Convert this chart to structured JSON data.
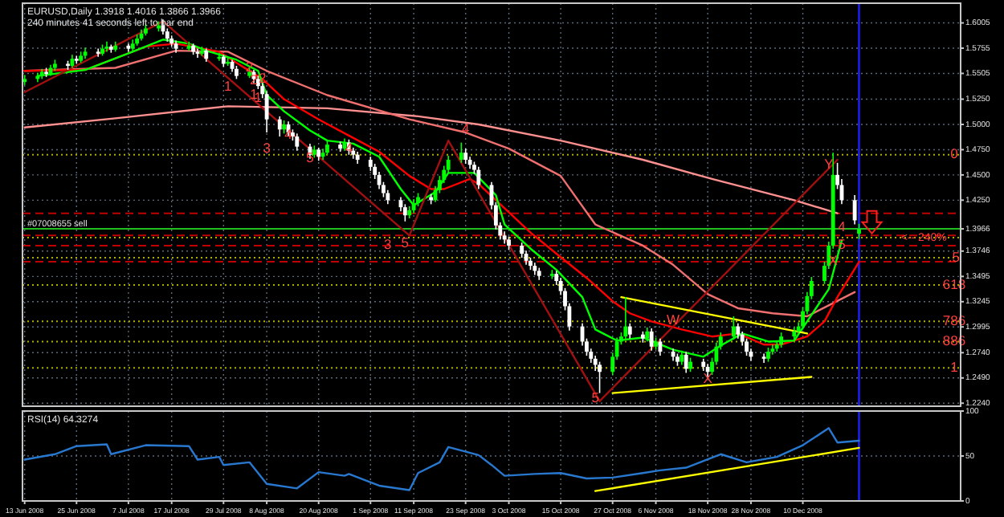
{
  "chart_data": [
    {
      "type": "candlestick",
      "title": "EURUSD,Daily  1.3918 1.4016 1.3866 1.3966",
      "subtitle": "240 minutes 41 seconds left to bar end",
      "colors": [
        "#00ff00",
        "#00ff00",
        "#00ff00",
        "#ffffff",
        "#00ff00",
        "#00ff00",
        "#ffffff",
        "#00ff00",
        "#ffffff",
        "#00ff00",
        "#00ff00",
        "#ffffff",
        "#00ff00",
        "#00ff00",
        "#ffffff",
        "#00ff00",
        "#ffffff",
        "#00ff00",
        "#00ff00",
        "#00ff00",
        "#00ff00",
        "#00ff00",
        "#ffffff",
        "#ffffff",
        "#ffffff",
        "#ffffff",
        "#00ff00",
        "#ffffff",
        "#ffffff",
        "#00ff00",
        "#ffffff",
        "#00ff00",
        "#ffffff",
        "#00ff00",
        "#ffffff",
        "#ffffff",
        "#00ff00",
        "#ffffff",
        "#ffffff",
        "#ffffff",
        "#ffffff",
        "#ffffff",
        "#00ff00",
        "#ffffff",
        "#ffffff",
        "#ffffff",
        "#ffffff",
        "#00ff00",
        "#ffffff",
        "#00ff00",
        "#00ff00",
        "#ffffff",
        "#00ff00",
        "#ffffff",
        "#ffffff",
        "#ffffff",
        "#ffffff",
        "#ffffff",
        "#ffffff",
        "#ffffff",
        "#ffffff",
        "#ffffff",
        "#ffffff",
        "#00ff00",
        "#00ff00",
        "#00ff00",
        "#ffffff",
        "#00ff00",
        "#00ff00",
        "#00ff00",
        "#00ff00",
        "#00ff00",
        "#ffffff",
        "#ffffff",
        "#ffffff",
        "#ffffff",
        "#ffffff",
        "#ffffff",
        "#ffffff",
        "#ffffff",
        "#ffffff",
        "#ffffff",
        "#ffffff",
        "#ffffff",
        "#ffffff",
        "#ffffff",
        "#00ff00",
        "#ffffff",
        "#ffffff",
        "#ffffff",
        "#ffffff",
        "#ffffff",
        "#ffffff",
        "#ffffff",
        "#ffffff",
        "#ffffff",
        "#00ff00",
        "#00ff00",
        "#00ff00",
        "#00ff00",
        "#ffffff",
        "#ffffff",
        "#00ff00",
        "#ffffff",
        "#00ff00",
        "#ffffff",
        "#ffffff",
        "#ffffff",
        "#00ff00",
        "#ffffff",
        "#00ff00",
        "#ffffff",
        "#ffffff",
        "#00ff00",
        "#00ff00",
        "#00ff00",
        "#00ff00",
        "#ffffff",
        "#ffffff",
        "#ffffff",
        "#ffffff",
        "#ffffff",
        "#00ff00",
        "#00ff00",
        "#00ff00",
        "#00ff00",
        "#00ff00",
        "#00ff00",
        "#00ff00",
        "#00ff00",
        "#00ff00",
        "#00ff00",
        "#00ff00",
        "#00ff00",
        "#ffffff",
        "#ffffff",
        "#ffffff",
        "#00ff00"
      ],
      "tick_labels": "y",
      "grid": true,
      "xlim": [
        "2008-06-13",
        "2009-01-15"
      ],
      "ylim": [
        1.221,
        1.62
      ],
      "xticks": [
        {
          "value": "2008-06-13",
          "label": null
        },
        {
          "value": "2008-06-25",
          "label": null
        },
        {
          "value": "2008-07-07",
          "label": null
        },
        {
          "value": "2008-07-17",
          "label": null
        },
        {
          "value": "2008-07-29",
          "label": null
        },
        {
          "value": "2008-08-08",
          "label": null
        },
        {
          "value": "2008-08-20",
          "label": null
        },
        {
          "value": "2008-09-01",
          "label": null
        },
        {
          "value": "2008-09-11",
          "label": null
        },
        {
          "value": "2008-09-23",
          "label": null
        },
        {
          "value": "2008-10-03",
          "label": null
        },
        {
          "value": "2008-10-15",
          "label": null
        },
        {
          "value": "2008-10-27",
          "label": null
        },
        {
          "value": "2008-11-06",
          "label": null
        },
        {
          "value": "2008-11-18",
          "label": null
        },
        {
          "value": "2008-11-28",
          "label": null
        },
        {
          "value": "2008-12-10",
          "label": null
        }
      ],
      "yticks": [
        1.6005,
        1.5755,
        1.5505,
        {
          "value": 1.525,
          "label": "1.5250"
        },
        {
          "value": 1.5,
          "label": "1.5000"
        },
        {
          "value": 1.475,
          "label": "1.4750"
        },
        {
          "value": 1.45,
          "label": "1.4500"
        },
        {
          "value": 1.425,
          "label": "1.4250"
        },
        1.3966,
        1.3746,
        1.3495,
        1.3245,
        1.2995,
        {
          "value": 1.274,
          "label": "1.2740"
        },
        {
          "value": 1.249,
          "label": "1.2490"
        },
        {
          "value": 1.224,
          "label": "1.2240"
        }
      ],
      "x": [
        "2008-06-13",
        "2008-06-16",
        "2008-06-17",
        "2008-06-18",
        "2008-06-19",
        "2008-06-20",
        "2008-06-23",
        "2008-06-24",
        "2008-06-25",
        "2008-06-26",
        "2008-06-27",
        "2008-06-30",
        "2008-07-01",
        "2008-07-02",
        "2008-07-03",
        "2008-07-04",
        "2008-07-07",
        "2008-07-08",
        "2008-07-09",
        "2008-07-10",
        "2008-07-11",
        "2008-07-14",
        "2008-07-15",
        "2008-07-16",
        "2008-07-17",
        "2008-07-18",
        "2008-07-21",
        "2008-07-22",
        "2008-07-23",
        "2008-07-24",
        "2008-07-25",
        "2008-07-28",
        "2008-07-29",
        "2008-07-30",
        "2008-07-31",
        "2008-08-01",
        "2008-08-04",
        "2008-08-05",
        "2008-08-06",
        "2008-08-07",
        "2008-08-08",
        "2008-08-11",
        "2008-08-12",
        "2008-08-13",
        "2008-08-14",
        "2008-08-15",
        "2008-08-18",
        "2008-08-19",
        "2008-08-20",
        "2008-08-21",
        "2008-08-22",
        "2008-08-25",
        "2008-08-26",
        "2008-08-27",
        "2008-08-28",
        "2008-08-29",
        "2008-09-01",
        "2008-09-02",
        "2008-09-03",
        "2008-09-04",
        "2008-09-05",
        "2008-09-08",
        "2008-09-09",
        "2008-09-10",
        "2008-09-11",
        "2008-09-12",
        "2008-09-15",
        "2008-09-16",
        "2008-09-17",
        "2008-09-18",
        "2008-09-19",
        "2008-09-22",
        "2008-09-23",
        "2008-09-24",
        "2008-09-25",
        "2008-09-26",
        "2008-09-29",
        "2008-09-30",
        "2008-10-01",
        "2008-10-02",
        "2008-10-03",
        "2008-10-06",
        "2008-10-07",
        "2008-10-08",
        "2008-10-09",
        "2008-10-10",
        "2008-10-13",
        "2008-10-14",
        "2008-10-15",
        "2008-10-16",
        "2008-10-17",
        "2008-10-20",
        "2008-10-21",
        "2008-10-22",
        "2008-10-23",
        "2008-10-24",
        "2008-10-27",
        "2008-10-28",
        "2008-10-29",
        "2008-10-30",
        "2008-10-31",
        "2008-11-03",
        "2008-11-04",
        "2008-11-05",
        "2008-11-06",
        "2008-11-07",
        "2008-11-10",
        "2008-11-11",
        "2008-11-12",
        "2008-11-13",
        "2008-11-14",
        "2008-11-17",
        "2008-11-18",
        "2008-11-19",
        "2008-11-20",
        "2008-11-21",
        "2008-11-24",
        "2008-11-25",
        "2008-11-26",
        "2008-11-27",
        "2008-11-28",
        "2008-12-01",
        "2008-12-02",
        "2008-12-03",
        "2008-12-04",
        "2008-12-05",
        "2008-12-08",
        "2008-12-09",
        "2008-12-10",
        "2008-12-11",
        "2008-12-12",
        "2008-12-15",
        "2008-12-16",
        "2008-12-17",
        "2008-12-18",
        "2008-12-19",
        "2008-12-22",
        "2008-12-23"
      ],
      "ohlc": [
        [
          1.542,
          1.549,
          1.539,
          1.545
        ],
        [
          1.545,
          1.551,
          1.542,
          1.548
        ],
        [
          1.548,
          1.555,
          1.545,
          1.552
        ],
        [
          1.552,
          1.556,
          1.547,
          1.55
        ],
        [
          1.55,
          1.559,
          1.548,
          1.556
        ],
        [
          1.556,
          1.564,
          1.553,
          1.56
        ],
        [
          1.56,
          1.563,
          1.554,
          1.558
        ],
        [
          1.558,
          1.569,
          1.556,
          1.565
        ],
        [
          1.565,
          1.568,
          1.56,
          1.563
        ],
        [
          1.563,
          1.572,
          1.561,
          1.568
        ],
        [
          1.568,
          1.576,
          1.565,
          1.572
        ],
        [
          1.572,
          1.575,
          1.567,
          1.57
        ],
        [
          1.57,
          1.579,
          1.568,
          1.575
        ],
        [
          1.575,
          1.582,
          1.572,
          1.577
        ],
        [
          1.577,
          1.579,
          1.571,
          1.574
        ],
        [
          1.574,
          1.582,
          1.572,
          1.578
        ],
        [
          1.578,
          1.58,
          1.572,
          1.575
        ],
        [
          1.575,
          1.584,
          1.573,
          1.58
        ],
        [
          1.58,
          1.589,
          1.578,
          1.585
        ],
        [
          1.585,
          1.594,
          1.583,
          1.59
        ],
        [
          1.59,
          1.599,
          1.588,
          1.595
        ],
        [
          1.595,
          1.602,
          1.592,
          1.598
        ],
        [
          1.598,
          1.604,
          1.589,
          1.592
        ],
        [
          1.592,
          1.595,
          1.582,
          1.585
        ],
        [
          1.585,
          1.588,
          1.577,
          1.58
        ],
        [
          1.58,
          1.583,
          1.571,
          1.575
        ],
        [
          1.575,
          1.582,
          1.573,
          1.578
        ],
        [
          1.578,
          1.58,
          1.569,
          1.572
        ],
        [
          1.572,
          1.575,
          1.566,
          1.57
        ],
        [
          1.57,
          1.577,
          1.568,
          1.573
        ],
        [
          1.573,
          1.575,
          1.562,
          1.565
        ],
        [
          1.565,
          1.571,
          1.563,
          1.567
        ],
        [
          1.567,
          1.569,
          1.557,
          1.56
        ],
        [
          1.56,
          1.566,
          1.558,
          1.562
        ],
        [
          1.562,
          1.564,
          1.552,
          1.555
        ],
        [
          1.555,
          1.558,
          1.545,
          1.548
        ],
        [
          1.548,
          1.556,
          1.546,
          1.552
        ],
        [
          1.552,
          1.554,
          1.541,
          1.545
        ],
        [
          1.545,
          1.548,
          1.535,
          1.538
        ],
        [
          1.538,
          1.541,
          1.526,
          1.53
        ],
        [
          1.53,
          1.533,
          1.492,
          1.505
        ],
        [
          1.505,
          1.508,
          1.488,
          1.495
        ],
        [
          1.495,
          1.504,
          1.491,
          1.5
        ],
        [
          1.5,
          1.503,
          1.488,
          1.492
        ],
        [
          1.492,
          1.495,
          1.484,
          1.488
        ],
        [
          1.488,
          1.491,
          1.474,
          1.478
        ],
        [
          1.478,
          1.481,
          1.466,
          1.47
        ],
        [
          1.47,
          1.479,
          1.467,
          1.475
        ],
        [
          1.475,
          1.477,
          1.464,
          1.468
        ],
        [
          1.468,
          1.476,
          1.465,
          1.472
        ],
        [
          1.472,
          1.484,
          1.47,
          1.48
        ],
        [
          1.48,
          1.483,
          1.473,
          1.476
        ],
        [
          1.476,
          1.486,
          1.474,
          1.482
        ],
        [
          1.482,
          1.485,
          1.47,
          1.474
        ],
        [
          1.474,
          1.477,
          1.466,
          1.47
        ],
        [
          1.47,
          1.473,
          1.461,
          1.465
        ],
        [
          1.465,
          1.468,
          1.454,
          1.458
        ],
        [
          1.458,
          1.461,
          1.446,
          1.45
        ],
        [
          1.45,
          1.453,
          1.436,
          1.44
        ],
        [
          1.44,
          1.443,
          1.428,
          1.432
        ],
        [
          1.432,
          1.435,
          1.421,
          1.425
        ],
        [
          1.425,
          1.428,
          1.414,
          1.418
        ],
        [
          1.418,
          1.421,
          1.404,
          1.41
        ],
        [
          1.41,
          1.419,
          1.407,
          1.415
        ],
        [
          1.415,
          1.426,
          1.412,
          1.422
        ],
        [
          1.422,
          1.432,
          1.419,
          1.428
        ],
        [
          1.428,
          1.431,
          1.421,
          1.425
        ],
        [
          1.425,
          1.439,
          1.423,
          1.435
        ],
        [
          1.435,
          1.449,
          1.432,
          1.445
        ],
        [
          1.445,
          1.459,
          1.442,
          1.455
        ],
        [
          1.455,
          1.469,
          1.452,
          1.465
        ],
        [
          1.465,
          1.482,
          1.462,
          1.472
        ],
        [
          1.472,
          1.476,
          1.461,
          1.465
        ],
        [
          1.465,
          1.468,
          1.456,
          1.46
        ],
        [
          1.46,
          1.463,
          1.451,
          1.455
        ],
        [
          1.455,
          1.458,
          1.436,
          1.44
        ],
        [
          1.44,
          1.443,
          1.416,
          1.42
        ],
        [
          1.42,
          1.423,
          1.396,
          1.4
        ],
        [
          1.4,
          1.403,
          1.386,
          1.39
        ],
        [
          1.39,
          1.394,
          1.382,
          1.386
        ],
        [
          1.386,
          1.389,
          1.376,
          1.38
        ],
        [
          1.38,
          1.383,
          1.368,
          1.372
        ],
        [
          1.372,
          1.375,
          1.361,
          1.365
        ],
        [
          1.365,
          1.368,
          1.356,
          1.36
        ],
        [
          1.36,
          1.363,
          1.351,
          1.355
        ],
        [
          1.355,
          1.358,
          1.346,
          1.35
        ],
        [
          1.35,
          1.356,
          1.347,
          1.352
        ],
        [
          1.352,
          1.355,
          1.341,
          1.345
        ],
        [
          1.345,
          1.348,
          1.331,
          1.335
        ],
        [
          1.335,
          1.338,
          1.316,
          1.32
        ],
        [
          1.32,
          1.323,
          1.296,
          1.3
        ],
        [
          1.3,
          1.303,
          1.281,
          1.285
        ],
        [
          1.285,
          1.288,
          1.271,
          1.275
        ],
        [
          1.275,
          1.278,
          1.264,
          1.268
        ],
        [
          1.268,
          1.271,
          1.256,
          1.262
        ],
        [
          1.262,
          1.265,
          1.234,
          1.255
        ],
        [
          1.255,
          1.274,
          1.252,
          1.27
        ],
        [
          1.27,
          1.289,
          1.267,
          1.285
        ],
        [
          1.285,
          1.294,
          1.282,
          1.29
        ],
        [
          1.29,
          1.329,
          1.287,
          1.3
        ],
        [
          1.3,
          1.303,
          1.288,
          1.292
        ],
        [
          1.292,
          1.295,
          1.284,
          1.288
        ],
        [
          1.288,
          1.299,
          1.285,
          1.295
        ],
        [
          1.295,
          1.298,
          1.276,
          1.28
        ],
        [
          1.28,
          1.289,
          1.277,
          1.285
        ],
        [
          1.285,
          1.288,
          1.271,
          1.275
        ],
        [
          1.275,
          1.278,
          1.266,
          1.27
        ],
        [
          1.27,
          1.273,
          1.261,
          1.265
        ],
        [
          1.265,
          1.276,
          1.262,
          1.272
        ],
        [
          1.272,
          1.275,
          1.254,
          1.258
        ],
        [
          1.258,
          1.269,
          1.255,
          1.265
        ],
        [
          1.265,
          1.268,
          1.256,
          1.26
        ],
        [
          1.26,
          1.263,
          1.248,
          1.255
        ],
        [
          1.255,
          1.269,
          1.252,
          1.265
        ],
        [
          1.265,
          1.284,
          1.262,
          1.28
        ],
        [
          1.28,
          1.294,
          1.277,
          1.29
        ],
        [
          1.29,
          1.31,
          1.287,
          1.3
        ],
        [
          1.3,
          1.303,
          1.288,
          1.292
        ],
        [
          1.292,
          1.295,
          1.281,
          1.285
        ],
        [
          1.285,
          1.288,
          1.271,
          1.275
        ],
        [
          1.275,
          1.278,
          1.266,
          1.27
        ],
        [
          1.27,
          1.273,
          1.264,
          1.268
        ],
        [
          1.268,
          1.279,
          1.265,
          1.275
        ],
        [
          1.275,
          1.282,
          1.272,
          1.278
        ],
        [
          1.278,
          1.286,
          1.275,
          1.282
        ],
        [
          1.282,
          1.294,
          1.279,
          1.29
        ],
        [
          1.29,
          1.299,
          1.287,
          1.295
        ],
        [
          1.295,
          1.304,
          1.292,
          1.3
        ],
        [
          1.3,
          1.319,
          1.297,
          1.315
        ],
        [
          1.315,
          1.334,
          1.312,
          1.33
        ],
        [
          1.33,
          1.349,
          1.327,
          1.345
        ],
        [
          1.345,
          1.364,
          1.342,
          1.36
        ],
        [
          1.36,
          1.384,
          1.357,
          1.38
        ],
        [
          1.38,
          1.472,
          1.377,
          1.45
        ],
        [
          1.45,
          1.462,
          1.436,
          1.44
        ],
        [
          1.44,
          1.446,
          1.421,
          1.425
        ],
        [
          1.425,
          1.43,
          1.401,
          1.405
        ],
        [
          1.3918,
          1.4016,
          1.3866,
          1.3966
        ]
      ],
      "series": [
        {
          "type": "line",
          "color": "#ff9090",
          "x": [
            "2008-06-13",
            "2008-07-04",
            "2008-07-30",
            "2008-08-22",
            "2008-09-12",
            "2008-09-26",
            "2008-10-15",
            "2008-11-03",
            "2008-11-19",
            "2008-12-08",
            "2008-12-18"
          ],
          "values": [
            1.497,
            1.506,
            1.518,
            1.516,
            1.508,
            1.5,
            1.484,
            1.465,
            1.446,
            1.425,
            1.412
          ]
        },
        {
          "type": "line",
          "color": "#f07070",
          "x": [
            "2008-06-13",
            "2008-07-04",
            "2008-07-18",
            "2008-07-30",
            "2008-08-08",
            "2008-08-22",
            "2008-09-10",
            "2008-09-23",
            "2008-10-03",
            "2008-10-15",
            "2008-10-23",
            "2008-11-03",
            "2008-11-10",
            "2008-11-18",
            "2008-11-25",
            "2008-12-03",
            "2008-12-11",
            "2008-12-22"
          ],
          "values": [
            1.553,
            1.556,
            1.573,
            1.572,
            1.553,
            1.529,
            1.505,
            1.492,
            1.476,
            1.449,
            1.401,
            1.38,
            1.361,
            1.332,
            1.318,
            1.313,
            1.31,
            1.334
          ]
        },
        {
          "type": "line",
          "color": "#ff0000",
          "x": [
            "2008-06-13",
            "2008-06-27",
            "2008-07-11",
            "2008-07-18",
            "2008-07-28",
            "2008-08-01",
            "2008-08-07",
            "2008-08-12",
            "2008-08-20",
            "2008-08-27",
            "2008-09-03",
            "2008-09-10",
            "2008-09-15",
            "2008-09-18",
            "2008-09-24",
            "2008-09-26",
            "2008-10-02",
            "2008-10-08",
            "2008-10-14",
            "2008-10-21",
            "2008-10-27",
            "2008-10-31",
            "2008-11-05",
            "2008-11-12",
            "2008-11-19",
            "2008-11-25",
            "2008-12-01",
            "2008-12-05",
            "2008-12-11",
            "2008-12-15",
            "2008-12-18",
            "2008-12-23"
          ],
          "values": [
            1.553,
            1.554,
            1.577,
            1.58,
            1.572,
            1.561,
            1.545,
            1.525,
            1.505,
            1.489,
            1.473,
            1.449,
            1.436,
            1.436,
            1.446,
            1.441,
            1.417,
            1.393,
            1.372,
            1.348,
            1.325,
            1.313,
            1.305,
            1.297,
            1.29,
            1.293,
            1.282,
            1.282,
            1.29,
            1.305,
            1.329,
            1.364
          ]
        },
        {
          "type": "line",
          "color": "#00ff00",
          "x": [
            "2008-06-16",
            "2008-06-27",
            "2008-07-08",
            "2008-07-15",
            "2008-07-21",
            "2008-07-25",
            "2008-08-01",
            "2008-08-06",
            "2008-08-08",
            "2008-08-12",
            "2008-08-18",
            "2008-08-22",
            "2008-08-28",
            "2008-09-03",
            "2008-09-08",
            "2008-09-11",
            "2008-09-16",
            "2008-09-19",
            "2008-09-25",
            "2008-09-30",
            "2008-10-02",
            "2008-10-08",
            "2008-10-14",
            "2008-10-20",
            "2008-10-23",
            "2008-10-28",
            "2008-11-03",
            "2008-11-10",
            "2008-11-17",
            "2008-11-21",
            "2008-11-26",
            "2008-12-02",
            "2008-12-08",
            "2008-12-11",
            "2008-12-16",
            "2008-12-18",
            "2008-12-19"
          ],
          "values": [
            1.548,
            1.554,
            1.572,
            1.584,
            1.58,
            1.573,
            1.564,
            1.553,
            1.529,
            1.513,
            1.494,
            1.484,
            1.481,
            1.468,
            1.436,
            1.42,
            1.433,
            1.452,
            1.452,
            1.43,
            1.401,
            1.377,
            1.356,
            1.329,
            1.297,
            1.286,
            1.289,
            1.277,
            1.27,
            1.281,
            1.293,
            1.285,
            1.286,
            1.305,
            1.337,
            1.369,
            1.385
          ]
        },
        {
          "type": "line",
          "color": "#a01010",
          "x": [
            "2008-06-13",
            "2008-07-15",
            "2008-09-10",
            "2008-09-19",
            "2008-10-24",
            "2008-12-18"
          ],
          "values": [
            1.532,
            1.602,
            1.39,
            1.484,
            1.226,
            1.465
          ]
        },
        {
          "type": "line",
          "color": "#ffff00",
          "x": [
            "2008-10-29",
            "2008-12-11"
          ],
          "values": [
            1.329,
            1.293
          ]
        },
        {
          "type": "line",
          "color": "#ffff00",
          "x": [
            "2008-10-27",
            "2008-12-12"
          ],
          "values": [
            1.234,
            1.25
          ]
        }
      ],
      "ref_lines": [
        {
          "axis": "y",
          "value": 1.412,
          "color": "#c00000",
          "line_style": "dashed"
        },
        {
          "axis": "y",
          "value": 1.39,
          "color": "#c00000",
          "line_style": "dashed"
        },
        {
          "axis": "y",
          "value": 1.38,
          "color": "#c00000",
          "line_style": "dashed"
        },
        {
          "axis": "y",
          "value": 1.364,
          "color": "#c00000",
          "line_style": "dashed"
        },
        {
          "axis": "y",
          "value": 1.3966,
          "label": "#07008655 sell",
          "color": "#20c020",
          "line_style": "solid"
        },
        {
          "axis": "y",
          "value": 1.47,
          "color": "#b0b000",
          "line_style": "dotted"
        },
        {
          "axis": "y",
          "value": 1.388,
          "color": "#b0b000",
          "line_style": "dotted"
        },
        {
          "axis": "y",
          "value": 1.368,
          "color": "#b0b000",
          "line_style": "dotted"
        },
        {
          "axis": "y",
          "value": 1.341,
          "color": "#b0b000",
          "line_style": "dotted"
        },
        {
          "axis": "y",
          "value": 1.305,
          "color": "#b0b000",
          "line_style": "dotted"
        },
        {
          "axis": "y",
          "value": 1.285,
          "color": "#b0b000",
          "line_style": "dotted"
        },
        {
          "axis": "y",
          "value": 1.259,
          "color": "#b0b000",
          "line_style": "dotted"
        },
        {
          "axis": "x",
          "value": "2008-12-23",
          "color": "#2020ff",
          "line_style": "solid"
        }
      ],
      "annotations": [
        {
          "text": "1",
          "x": "2008-07-30",
          "y": 1.5367
        },
        {
          "text": "2",
          "x": "2008-08-04",
          "y": 1.556
        },
        {
          "text": "1",
          "x": "2008-08-05",
          "y": 1.5287
        },
        {
          "text": "2",
          "x": "2008-08-05",
          "y": 1.5431
        },
        {
          "text": "1",
          "x": "2008-08-06",
          "y": 1.5255
        },
        {
          "text": "2",
          "x": "2008-08-07",
          "y": 1.5447
        },
        {
          "text": "3",
          "x": "2008-08-08",
          "y": 1.4761
        },
        {
          "text": "4",
          "x": "2008-08-13",
          "y": 1.4889
        },
        {
          "text": "5",
          "x": "2008-08-18",
          "y": 1.466
        },
        {
          "text": "4",
          "x": "2008-08-27",
          "y": 1.4761
        },
        {
          "text": "3",
          "x": "2008-09-05",
          "y": 1.3804
        },
        {
          "text": "5",
          "x": "2008-09-09",
          "y": 1.382
        },
        {
          "text": "4",
          "x": "2008-09-23",
          "y": 1.495
        },
        {
          "text": "5",
          "x": "2008-10-23",
          "y": 1.2289
        },
        {
          "text": "W",
          "x": "2008-11-10",
          "y": 1.3054
        },
        {
          "text": "X",
          "x": "2008-11-18",
          "y": 1.248
        },
        {
          "text": "Y",
          "x": "2008-12-16",
          "y": 1.4602
        },
        {
          "text": "X",
          "x": "2008-12-17",
          "y": 1.3645
        },
        {
          "text": "4",
          "x": "2008-12-19",
          "y": 1.398
        },
        {
          "text": "5",
          "x": "2008-12-19",
          "y": 1.3804
        },
        {
          "text": "0",
          "x": "2009-01-14",
          "y": 1.47
        },
        {
          "text": "<-- 240%",
          "x": "2009-01-07",
          "y": 1.388
        },
        {
          "text": ".5",
          "x": "2009-01-14",
          "y": 1.368
        },
        {
          "text": "618",
          "x": "2009-01-14",
          "y": 1.341
        },
        {
          "text": "786",
          "x": "2009-01-14",
          "y": 1.305
        },
        {
          "text": "886",
          "x": "2009-01-14",
          "y": 1.285
        },
        {
          "text": "1",
          "x": "2009-01-14",
          "y": 1.259
        }
      ]
    },
    {
      "type": "line",
      "title": "RSI(14) 64.3274",
      "grid": true,
      "xlim": [
        "2008-06-13",
        "2009-01-15"
      ],
      "ylim": [
        0,
        100
      ],
      "yticks": [
        0,
        50,
        100
      ],
      "xticks": [
        {
          "value": "2008-06-13",
          "label": "13 Jun 2008"
        },
        {
          "value": "2008-06-25",
          "label": "25 Jun 2008"
        },
        {
          "value": "2008-07-07",
          "label": "7 Jul 2008"
        },
        {
          "value": "2008-07-17",
          "label": "17 Jul 2008"
        },
        {
          "value": "2008-07-29",
          "label": "29 Jul 2008"
        },
        {
          "value": "2008-08-08",
          "label": "8 Aug 2008"
        },
        {
          "value": "2008-08-20",
          "label": "20 Aug 2008"
        },
        {
          "value": "2008-09-01",
          "label": "1 Sep 2008"
        },
        {
          "value": "2008-09-11",
          "label": "11 Sep 2008"
        },
        {
          "value": "2008-09-23",
          "label": "23 Sep 2008"
        },
        {
          "value": "2008-10-03",
          "label": "3 Oct 2008"
        },
        {
          "value": "2008-10-15",
          "label": "15 Oct 2008"
        },
        {
          "value": "2008-10-27",
          "label": "27 Oct 2008"
        },
        {
          "value": "2008-11-06",
          "label": "6 Nov 2008"
        },
        {
          "value": "2008-11-18",
          "label": "18 Nov 2008"
        },
        {
          "value": "2008-11-28",
          "label": "28 Nov 2008"
        },
        {
          "value": "2008-12-10",
          "label": "10 Dec 2008"
        }
      ],
      "series": [
        {
          "color": "#2878d0",
          "x": [
            "2008-06-13",
            "2008-06-20",
            "2008-06-25",
            "2008-07-02",
            "2008-07-03",
            "2008-07-11",
            "2008-07-21",
            "2008-07-23",
            "2008-07-28",
            "2008-07-29",
            "2008-08-04",
            "2008-08-08",
            "2008-08-15",
            "2008-08-20",
            "2008-08-26",
            "2008-08-27",
            "2008-09-03",
            "2008-09-10",
            "2008-09-12",
            "2008-09-17",
            "2008-09-19",
            "2008-09-26",
            "2008-09-29",
            "2008-10-02",
            "2008-10-09",
            "2008-10-15",
            "2008-10-21",
            "2008-10-27",
            "2008-11-03",
            "2008-11-07",
            "2008-11-13",
            "2008-11-21",
            "2008-11-27",
            "2008-12-04",
            "2008-12-10",
            "2008-12-16",
            "2008-12-18",
            "2008-12-23"
          ],
          "values": [
            46,
            52,
            61,
            63,
            52,
            62,
            61,
            46,
            49,
            40,
            43,
            19,
            14,
            32,
            28,
            30,
            17,
            12,
            31,
            43,
            60,
            51,
            40,
            28,
            30,
            31,
            25,
            26,
            31,
            34,
            37,
            52,
            43,
            49,
            62,
            81,
            65,
            67
          ]
        },
        {
          "color": "#ffff00",
          "x": [
            "2008-10-23",
            "2008-12-23"
          ],
          "values": [
            11,
            59
          ]
        }
      ],
      "ref_lines": [
        {
          "axis": "x",
          "value": "2008-12-23",
          "color": "#2020ff",
          "line_style": "solid"
        }
      ]
    }
  ]
}
